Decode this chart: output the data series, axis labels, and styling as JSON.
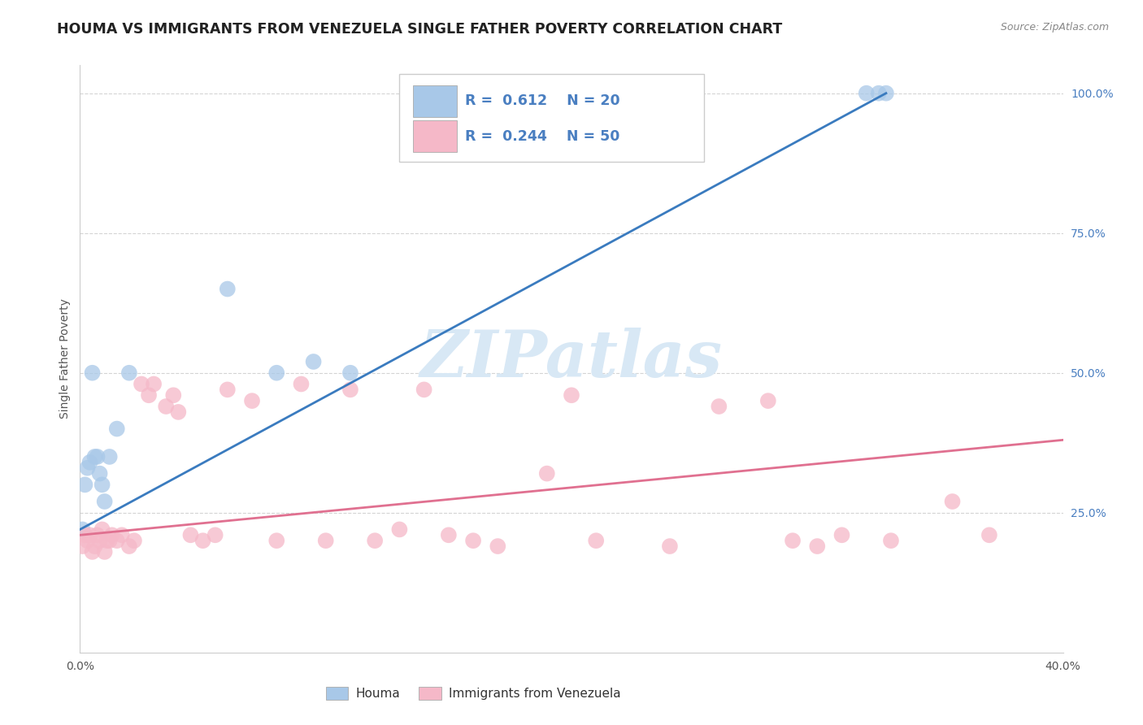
{
  "title": "HOUMA VS IMMIGRANTS FROM VENEZUELA SINGLE FATHER POVERTY CORRELATION CHART",
  "source_text": "Source: ZipAtlas.com",
  "ylabel": "Single Father Poverty",
  "x_min": 0.0,
  "x_max": 0.4,
  "y_min": 0.0,
  "y_max": 1.05,
  "blue_R": 0.612,
  "blue_N": 20,
  "pink_R": 0.244,
  "pink_N": 50,
  "houma_color": "#a8c8e8",
  "venezuela_color": "#f5b8c8",
  "blue_line_color": "#3a7bbf",
  "pink_line_color": "#e07090",
  "legend_R_color": "#4a7fc1",
  "watermark_color": "#d8e8f5",
  "houma_points_x": [
    0.001,
    0.002,
    0.003,
    0.004,
    0.005,
    0.006,
    0.007,
    0.008,
    0.009,
    0.01,
    0.012,
    0.015,
    0.02,
    0.06,
    0.08,
    0.095,
    0.11,
    0.32,
    0.325,
    0.328
  ],
  "houma_points_y": [
    0.22,
    0.3,
    0.33,
    0.34,
    0.5,
    0.35,
    0.35,
    0.32,
    0.3,
    0.27,
    0.35,
    0.4,
    0.5,
    0.65,
    0.5,
    0.52,
    0.5,
    1.0,
    1.0,
    1.0
  ],
  "venezuela_points_x": [
    0.001,
    0.002,
    0.003,
    0.004,
    0.005,
    0.006,
    0.007,
    0.008,
    0.009,
    0.01,
    0.011,
    0.012,
    0.013,
    0.015,
    0.017,
    0.02,
    0.022,
    0.025,
    0.028,
    0.03,
    0.035,
    0.038,
    0.04,
    0.045,
    0.05,
    0.055,
    0.06,
    0.07,
    0.08,
    0.09,
    0.1,
    0.11,
    0.12,
    0.13,
    0.14,
    0.15,
    0.16,
    0.17,
    0.19,
    0.2,
    0.21,
    0.24,
    0.26,
    0.28,
    0.29,
    0.3,
    0.31,
    0.33,
    0.355,
    0.37
  ],
  "venezuela_points_y": [
    0.19,
    0.21,
    0.2,
    0.21,
    0.18,
    0.19,
    0.21,
    0.2,
    0.22,
    0.18,
    0.2,
    0.2,
    0.21,
    0.2,
    0.21,
    0.19,
    0.2,
    0.48,
    0.46,
    0.48,
    0.44,
    0.46,
    0.43,
    0.21,
    0.2,
    0.21,
    0.47,
    0.45,
    0.2,
    0.48,
    0.2,
    0.47,
    0.2,
    0.22,
    0.47,
    0.21,
    0.2,
    0.19,
    0.32,
    0.46,
    0.2,
    0.19,
    0.44,
    0.45,
    0.2,
    0.19,
    0.21,
    0.2,
    0.27,
    0.21
  ],
  "bg_color": "#ffffff",
  "grid_color": "#d0d0d0"
}
